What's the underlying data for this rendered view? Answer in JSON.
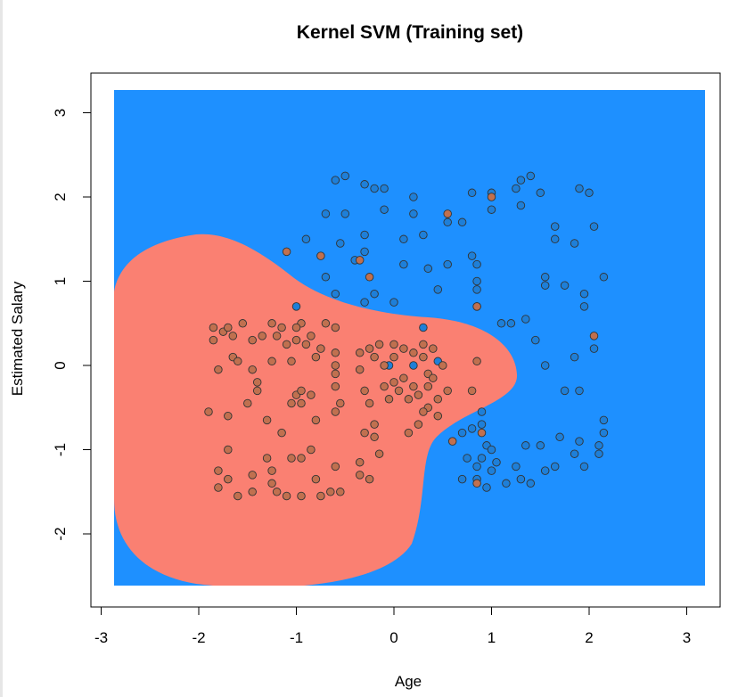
{
  "chart_data": {
    "type": "scatter",
    "title": "Kernel SVM (Training set)",
    "xlabel": "Age",
    "ylabel": "Estimated Salary",
    "xlim": [
      -3,
      3.2
    ],
    "ylim": [
      -2.6,
      3.2
    ],
    "x_ticks": [
      "-3",
      "-2",
      "-1",
      "0",
      "1",
      "2",
      "3"
    ],
    "y_ticks": [
      "-2",
      "-1",
      "0",
      "1",
      "2",
      "3"
    ],
    "grid": false,
    "legend": "none",
    "colors": {
      "region_class_1": "#1E90FF",
      "region_class_0": "#FA8072",
      "points_class_1": "#1E7FD8",
      "points_class_0": "#C0704F",
      "point_stroke": "#333333"
    },
    "series": [
      {
        "class": 1,
        "points": [
          [
            -0.6,
            2.2
          ],
          [
            -0.5,
            2.25
          ],
          [
            -0.3,
            2.15
          ],
          [
            -0.2,
            2.1
          ],
          [
            -0.1,
            2.1
          ],
          [
            0.2,
            2.0
          ],
          [
            1.3,
            2.2
          ],
          [
            1.4,
            2.25
          ],
          [
            1.5,
            2.05
          ],
          [
            0.8,
            2.05
          ],
          [
            1.0,
            2.05
          ],
          [
            1.25,
            2.1
          ],
          [
            1.9,
            2.1
          ],
          [
            2.0,
            2.05
          ],
          [
            -0.7,
            1.8
          ],
          [
            -0.5,
            1.8
          ],
          [
            -0.1,
            1.85
          ],
          [
            0.2,
            1.8
          ],
          [
            0.55,
            1.7
          ],
          [
            0.7,
            1.7
          ],
          [
            1.0,
            1.85
          ],
          [
            1.3,
            1.9
          ],
          [
            1.65,
            1.65
          ],
          [
            2.05,
            1.65
          ],
          [
            1.65,
            1.5
          ],
          [
            1.85,
            1.45
          ],
          [
            -0.9,
            1.5
          ],
          [
            -0.55,
            1.45
          ],
          [
            -0.3,
            1.55
          ],
          [
            0.1,
            1.5
          ],
          [
            0.3,
            1.55
          ],
          [
            -0.3,
            1.35
          ],
          [
            -0.4,
            1.25
          ],
          [
            0.1,
            1.2
          ],
          [
            0.35,
            1.15
          ],
          [
            0.55,
            1.2
          ],
          [
            0.8,
            1.3
          ],
          [
            0.85,
            1.2
          ],
          [
            -0.7,
            1.05
          ],
          [
            -0.6,
            0.85
          ],
          [
            -0.2,
            0.85
          ],
          [
            0.45,
            0.9
          ],
          [
            0.85,
            1.0
          ],
          [
            0.85,
            0.9
          ],
          [
            1.55,
            1.05
          ],
          [
            1.55,
            0.95
          ],
          [
            1.75,
            0.95
          ],
          [
            1.95,
            0.85
          ],
          [
            2.15,
            1.05
          ],
          [
            -0.3,
            0.75
          ],
          [
            0.0,
            0.75
          ],
          [
            0.85,
            0.7
          ],
          [
            1.1,
            0.5
          ],
          [
            1.2,
            0.5
          ],
          [
            1.35,
            0.55
          ],
          [
            1.45,
            0.3
          ],
          [
            1.95,
            0.7
          ],
          [
            2.05,
            0.2
          ],
          [
            1.85,
            0.1
          ],
          [
            1.55,
            0.0
          ],
          [
            1.75,
            -0.3
          ],
          [
            1.9,
            -0.3
          ],
          [
            -1.0,
            0.7
          ],
          [
            0.3,
            0.45
          ],
          [
            -0.05,
            0.0
          ],
          [
            0.2,
            0.0
          ],
          [
            0.45,
            0.05
          ],
          [
            0.7,
            -0.8
          ],
          [
            0.8,
            -0.75
          ],
          [
            0.9,
            -0.55
          ],
          [
            0.9,
            -0.7
          ],
          [
            0.95,
            -0.95
          ],
          [
            1.0,
            -1.0
          ],
          [
            0.75,
            -1.1
          ],
          [
            0.9,
            -1.1
          ],
          [
            1.05,
            -1.15
          ],
          [
            0.7,
            -1.35
          ],
          [
            0.85,
            -1.35
          ],
          [
            0.95,
            -1.45
          ],
          [
            1.15,
            -1.4
          ],
          [
            1.3,
            -1.35
          ],
          [
            1.4,
            -1.4
          ],
          [
            1.25,
            -1.2
          ],
          [
            1.35,
            -0.95
          ],
          [
            1.5,
            -0.95
          ],
          [
            1.55,
            -1.25
          ],
          [
            1.7,
            -0.85
          ],
          [
            1.9,
            -0.9
          ],
          [
            1.95,
            -1.2
          ],
          [
            2.1,
            -0.95
          ],
          [
            2.15,
            -0.65
          ],
          [
            2.15,
            -0.8
          ],
          [
            2.1,
            -1.05
          ],
          [
            1.85,
            -1.05
          ],
          [
            1.65,
            -1.2
          ],
          [
            1.0,
            -1.25
          ],
          [
            0.85,
            -1.2
          ]
        ]
      },
      {
        "class": 0,
        "points": [
          [
            -1.85,
            0.45
          ],
          [
            -1.85,
            0.3
          ],
          [
            -1.75,
            0.4
          ],
          [
            -1.7,
            0.45
          ],
          [
            -1.65,
            0.35
          ],
          [
            -1.55,
            0.5
          ],
          [
            -1.45,
            0.3
          ],
          [
            -1.35,
            0.35
          ],
          [
            -1.25,
            0.5
          ],
          [
            -1.15,
            0.45
          ],
          [
            -1.1,
            0.25
          ],
          [
            -1.0,
            0.3
          ],
          [
            -0.95,
            0.5
          ],
          [
            -0.85,
            0.35
          ],
          [
            -0.7,
            0.5
          ],
          [
            -0.6,
            0.45
          ],
          [
            -1.2,
            0.35
          ],
          [
            -1.0,
            0.45
          ],
          [
            -0.9,
            0.25
          ],
          [
            -0.75,
            0.2
          ],
          [
            -1.65,
            0.1
          ],
          [
            -1.6,
            0.05
          ],
          [
            -1.8,
            -0.05
          ],
          [
            -1.45,
            -0.05
          ],
          [
            -1.25,
            0.05
          ],
          [
            -1.05,
            0.05
          ],
          [
            -0.8,
            0.1
          ],
          [
            -0.6,
            0.15
          ],
          [
            -0.6,
            0.0
          ],
          [
            -0.6,
            -0.1
          ],
          [
            -1.4,
            -0.2
          ],
          [
            -1.4,
            -0.3
          ],
          [
            -1.0,
            -0.35
          ],
          [
            -0.95,
            -0.3
          ],
          [
            -0.85,
            -0.35
          ],
          [
            -0.6,
            -0.25
          ],
          [
            -0.55,
            -0.45
          ],
          [
            -1.9,
            -0.55
          ],
          [
            -1.7,
            -0.6
          ],
          [
            -1.5,
            -0.45
          ],
          [
            -1.3,
            -0.65
          ],
          [
            -1.05,
            -0.45
          ],
          [
            -0.95,
            -0.45
          ],
          [
            -0.8,
            -0.65
          ],
          [
            -0.6,
            -0.55
          ],
          [
            -1.7,
            -1.0
          ],
          [
            -1.8,
            -1.25
          ],
          [
            -1.8,
            -1.45
          ],
          [
            -1.7,
            -1.35
          ],
          [
            -1.6,
            -1.55
          ],
          [
            -1.45,
            -1.3
          ],
          [
            -1.45,
            -1.5
          ],
          [
            -1.3,
            -1.1
          ],
          [
            -1.25,
            -1.25
          ],
          [
            -1.25,
            -1.4
          ],
          [
            -1.2,
            -1.5
          ],
          [
            -1.05,
            -1.1
          ],
          [
            -1.1,
            -1.55
          ],
          [
            -0.95,
            -1.1
          ],
          [
            -0.95,
            -1.55
          ],
          [
            -0.85,
            -1.0
          ],
          [
            -0.8,
            -1.35
          ],
          [
            -0.75,
            -1.55
          ],
          [
            -0.65,
            -1.5
          ],
          [
            -0.55,
            -1.5
          ],
          [
            -0.6,
            -1.2
          ],
          [
            -1.15,
            -0.8
          ],
          [
            -0.35,
            -1.15
          ],
          [
            -0.35,
            -1.3
          ],
          [
            -0.25,
            -1.35
          ],
          [
            -0.3,
            -0.8
          ],
          [
            -0.2,
            -0.85
          ],
          [
            -0.15,
            -1.05
          ],
          [
            -0.35,
            0.15
          ],
          [
            -0.35,
            -0.05
          ],
          [
            -0.3,
            -0.3
          ],
          [
            -0.25,
            -0.45
          ],
          [
            -0.2,
            -0.7
          ],
          [
            -0.25,
            0.2
          ],
          [
            -0.2,
            0.1
          ],
          [
            -0.15,
            0.25
          ],
          [
            -0.1,
            0.0
          ],
          [
            -0.1,
            -0.25
          ],
          [
            -0.05,
            -0.4
          ],
          [
            0.0,
            0.25
          ],
          [
            0.0,
            0.1
          ],
          [
            0.0,
            -0.2
          ],
          [
            0.05,
            -0.3
          ],
          [
            0.1,
            0.2
          ],
          [
            0.1,
            -0.15
          ],
          [
            0.15,
            -0.4
          ],
          [
            0.2,
            0.15
          ],
          [
            0.2,
            -0.25
          ],
          [
            0.25,
            -0.35
          ],
          [
            0.3,
            0.25
          ],
          [
            0.3,
            0.1
          ],
          [
            0.35,
            -0.1
          ],
          [
            0.35,
            -0.25
          ],
          [
            0.35,
            -0.5
          ],
          [
            0.4,
            0.2
          ],
          [
            0.4,
            -0.15
          ],
          [
            0.45,
            -0.4
          ],
          [
            0.5,
            0.0
          ],
          [
            0.55,
            -0.3
          ],
          [
            0.3,
            -0.55
          ],
          [
            0.25,
            -0.7
          ],
          [
            0.15,
            -0.8
          ],
          [
            0.45,
            -0.6
          ],
          [
            0.6,
            -0.9
          ],
          [
            0.85,
            0.05
          ],
          [
            0.8,
            -0.3
          ],
          [
            1.0,
            2.0
          ],
          [
            0.55,
            1.8
          ],
          [
            -1.1,
            1.35
          ],
          [
            -0.75,
            1.3
          ],
          [
            -0.35,
            1.25
          ],
          [
            -0.25,
            1.05
          ],
          [
            0.85,
            0.7
          ],
          [
            2.05,
            0.35
          ],
          [
            0.9,
            -0.8
          ],
          [
            0.85,
            -1.4
          ]
        ]
      }
    ]
  }
}
